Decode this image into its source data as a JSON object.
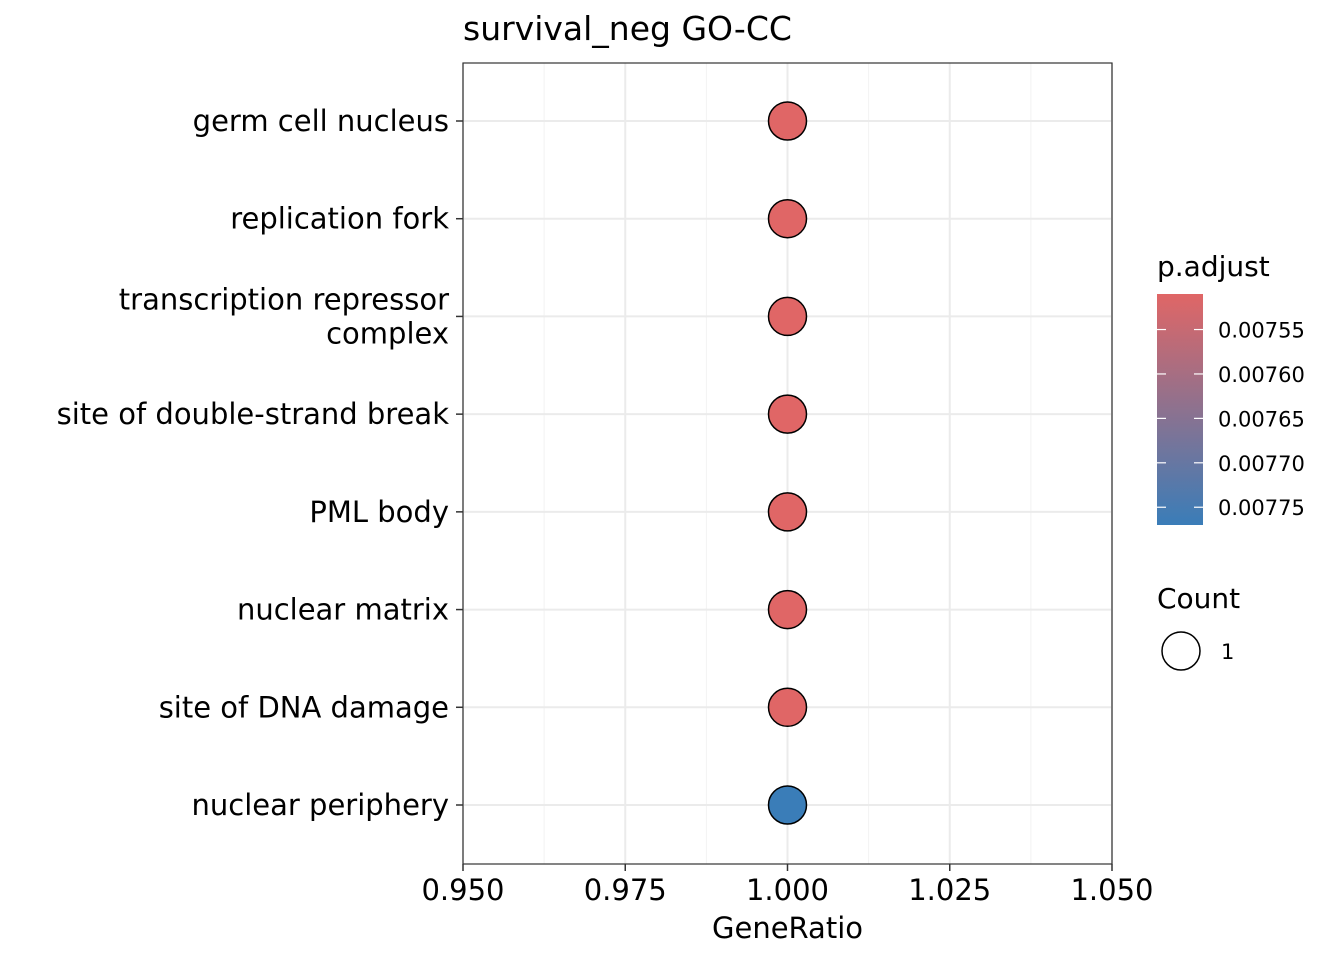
{
  "chart_data": {
    "type": "scatter",
    "title": "survival_neg GO-CC",
    "xlabel": "GeneRatio",
    "ylabel": "",
    "xlim": [
      0.95,
      1.05
    ],
    "x_ticks": [
      "0.950",
      "0.975",
      "1.000",
      "1.025",
      "1.050"
    ],
    "grid": true,
    "categories": [
      "germ cell nucleus",
      "replication fork",
      "transcription repressor complex",
      "site of double-strand break",
      "PML body",
      "nuclear matrix",
      "site of DNA damage",
      "nuclear periphery"
    ],
    "category_lines": [
      [
        "germ cell nucleus"
      ],
      [
        "replication fork"
      ],
      [
        "transcription repressor",
        "complex"
      ],
      [
        "site of double-strand break"
      ],
      [
        "PML body"
      ],
      [
        "nuclear matrix"
      ],
      [
        "site of DNA damage"
      ],
      [
        "nuclear periphery"
      ]
    ],
    "points": [
      {
        "term": "germ cell nucleus",
        "x": 1.0,
        "count": 1,
        "p_adjust": 0.00751
      },
      {
        "term": "replication fork",
        "x": 1.0,
        "count": 1,
        "p_adjust": 0.00751
      },
      {
        "term": "transcription repressor complex",
        "x": 1.0,
        "count": 1,
        "p_adjust": 0.00751
      },
      {
        "term": "site of double-strand break",
        "x": 1.0,
        "count": 1,
        "p_adjust": 0.00751
      },
      {
        "term": "PML body",
        "x": 1.0,
        "count": 1,
        "p_adjust": 0.00751
      },
      {
        "term": "nuclear matrix",
        "x": 1.0,
        "count": 1,
        "p_adjust": 0.00751
      },
      {
        "term": "site of DNA damage",
        "x": 1.0,
        "count": 1,
        "p_adjust": 0.00751
      },
      {
        "term": "nuclear periphery",
        "x": 1.0,
        "count": 1,
        "p_adjust": 0.00777
      }
    ],
    "color_legend": {
      "title": "p.adjust",
      "range": [
        0.00751,
        0.00777
      ],
      "ticks": [
        0.00755,
        0.0076,
        0.00765,
        0.0077,
        0.00775
      ],
      "tick_labels": [
        "0.00755",
        "0.00760",
        "0.00765",
        "0.00770",
        "0.00775"
      ],
      "low_color": "#E06666",
      "high_color": "#3A7DB8"
    },
    "size_legend": {
      "title": "Count",
      "values": [
        1
      ],
      "labels": [
        "1"
      ]
    },
    "legend_position": "right"
  }
}
